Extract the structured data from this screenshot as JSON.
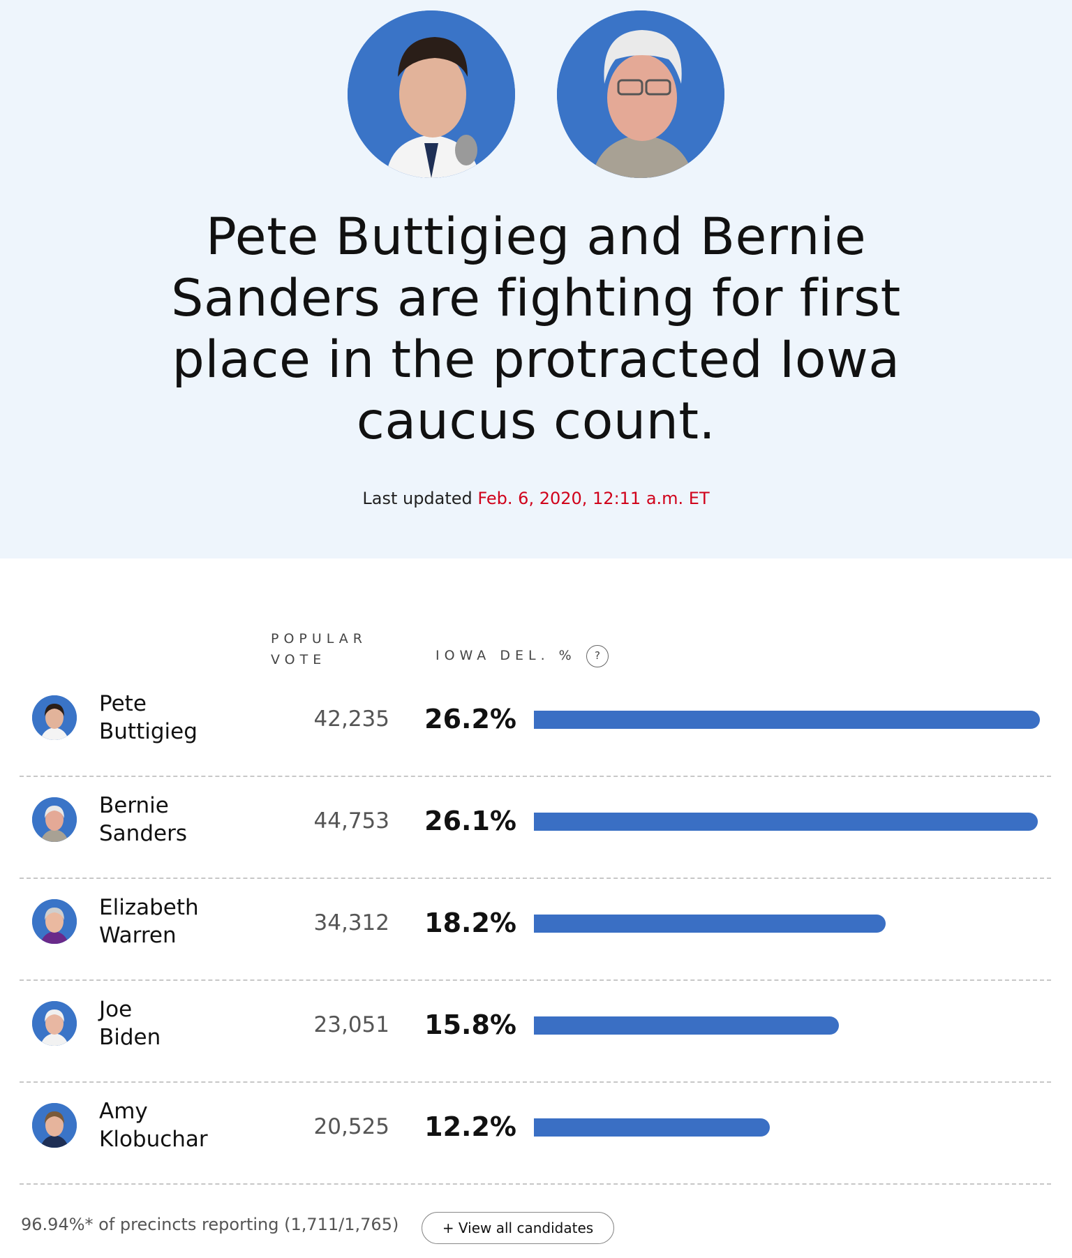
{
  "hero": {
    "photos": [
      {
        "name": "buttigieg-photo"
      },
      {
        "name": "sanders-photo"
      }
    ],
    "headline": "Pete Buttigieg and Bernie Sanders are fighting for first place in the protracted Iowa caucus count.",
    "updated_label": "Last updated",
    "updated_time": "Feb. 6, 2020, 12:11 a.m. ET"
  },
  "table": {
    "headers": {
      "popular_vote_line1": "POPULAR",
      "popular_vote_line2": "VOTE",
      "delegate_pct": "IOWA DEL. %",
      "help": "?"
    },
    "rows": [
      {
        "first": "Pete",
        "last": "Buttigieg",
        "votes": "42,235",
        "pct_label": "26.2%",
        "pct": 26.2
      },
      {
        "first": "Bernie",
        "last": "Sanders",
        "votes": "44,753",
        "pct_label": "26.1%",
        "pct": 26.1
      },
      {
        "first": "Elizabeth",
        "last": "Warren",
        "votes": "34,312",
        "pct_label": "18.2%",
        "pct": 18.2
      },
      {
        "first": "Joe",
        "last": "Biden",
        "votes": "23,051",
        "pct_label": "15.8%",
        "pct": 15.8
      },
      {
        "first": "Amy",
        "last": "Klobuchar",
        "votes": "20,525",
        "pct_label": "12.2%",
        "pct": 12.2
      }
    ]
  },
  "footer": {
    "reporting": "96.94%* of precincts reporting (1,711/1,765)",
    "view_all": "+ View all candidates"
  },
  "colors": {
    "hero_bg": "#eef5fc",
    "accent_blue": "#3a6fc4",
    "timestamp_red": "#d0021b"
  }
}
